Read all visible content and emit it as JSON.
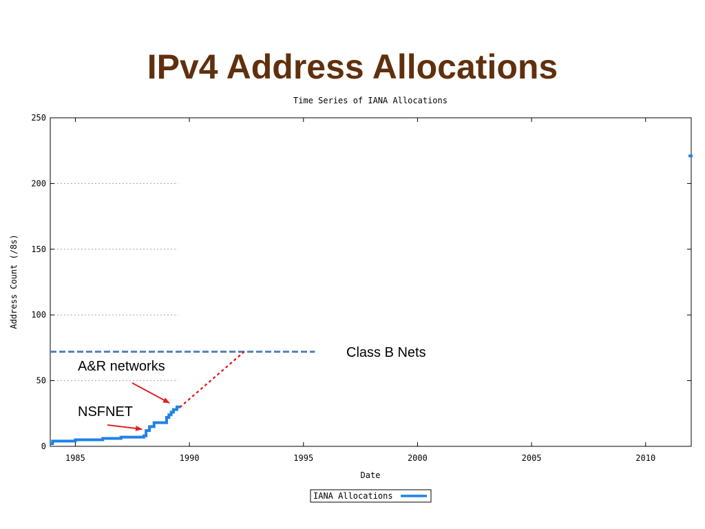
{
  "slide": {
    "title": "IPv4 Address Allocations"
  },
  "colors": {
    "title": "#60300e",
    "series": "#1e82e6",
    "reference_line": "#4f81bd",
    "projection": "#e02020",
    "arrow": "#e02020",
    "axis": "#000000",
    "grid": "#a0a0a0"
  },
  "chart_data": {
    "type": "line",
    "title": "Time Series of IANA Allocations",
    "xlabel": "Date",
    "ylabel": "Address Count (/8s)",
    "xlim": [
      1983.9,
      2012.0
    ],
    "ylim": [
      0,
      250
    ],
    "xticks": [
      1985,
      1990,
      1995,
      2000,
      2005,
      2010
    ],
    "yticks": [
      0,
      50,
      100,
      150,
      200,
      250
    ],
    "grid": "dotted horizontal lines, left portion only",
    "legend": "bottom-center",
    "series": [
      {
        "name": "IANA Allocations",
        "step": true,
        "x": [
          1983.9,
          1984.0,
          1985.0,
          1986.2,
          1987.0,
          1988.0,
          1988.1,
          1988.25,
          1988.45,
          1988.9,
          1989.0,
          1989.1,
          1989.2,
          1989.3,
          1989.45,
          1989.6
        ],
        "y": [
          2,
          4,
          5,
          6,
          7,
          8,
          12,
          15,
          18,
          18,
          22,
          24,
          26,
          28,
          30,
          30
        ]
      }
    ],
    "isolated_points": [
      {
        "x": 2012.0,
        "y": 221
      }
    ],
    "projection": {
      "x": [
        1989.6,
        1992.4
      ],
      "y": [
        30,
        72
      ]
    },
    "reference_line": {
      "y": 72,
      "x": [
        1983.9,
        1995.5
      ]
    },
    "annotations": [
      {
        "text": "Class B Nets"
      },
      {
        "text": "A&R networks"
      },
      {
        "text": "NSFNET"
      }
    ]
  }
}
